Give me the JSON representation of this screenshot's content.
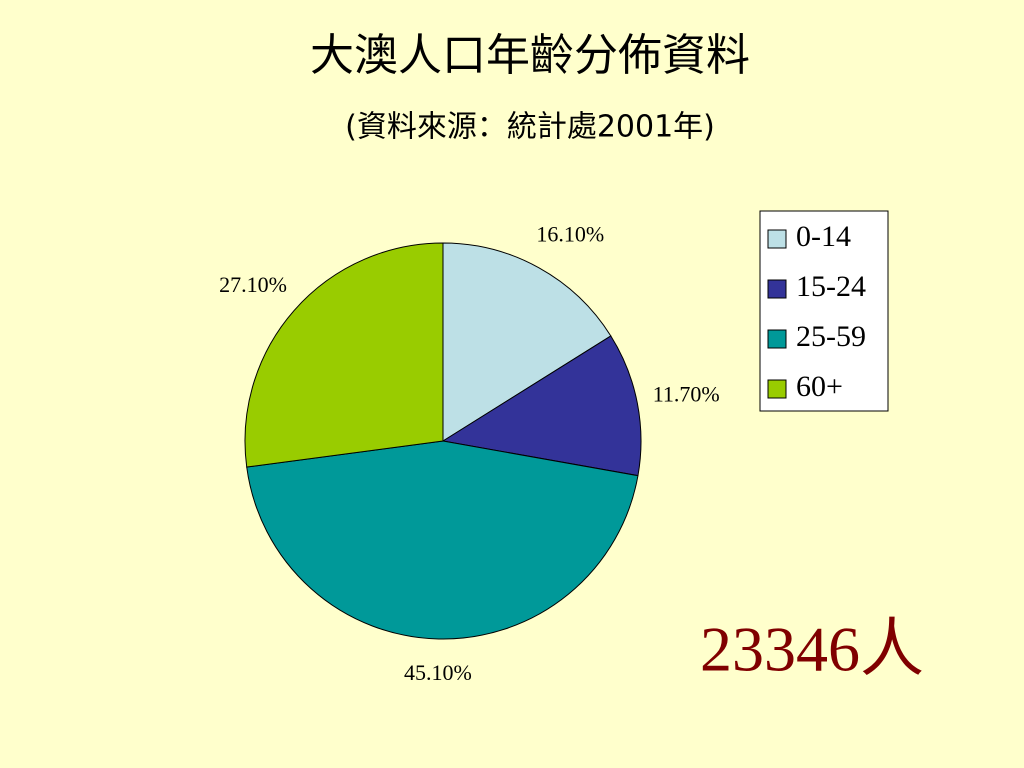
{
  "chart_data": {
    "type": "pie",
    "title": "大澳人口年齡分佈資料",
    "subtitle": "(資料來源：統計處2001年)",
    "categories": [
      "0-14",
      "15-24",
      "25-59",
      "60+"
    ],
    "series": [
      {
        "values": [
          16.1,
          11.7,
          45.1,
          27.1
        ],
        "value_labels": [
          "16.10%",
          "11.70%",
          "45.10%",
          "27.10%"
        ],
        "colors": [
          "#bde0e6",
          "#333399",
          "#009999",
          "#99cc00"
        ]
      }
    ],
    "legend": "right",
    "annotation": "23346人"
  }
}
